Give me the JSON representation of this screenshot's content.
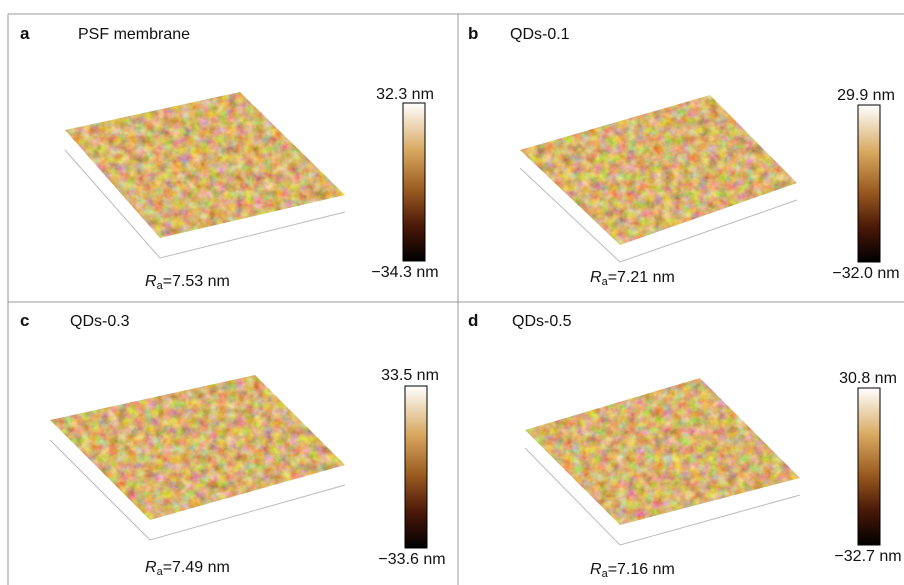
{
  "panels": [
    {
      "letter": "a",
      "title": "PSF membrane",
      "scale_max": "32.3 nm",
      "scale_min": "−34.3 nm",
      "ra": {
        "symbol": "R",
        "subscript": "a",
        "value": "=7.53 nm"
      }
    },
    {
      "letter": "b",
      "title": "QDs-0.1",
      "scale_max": "29.9 nm",
      "scale_min": "−32.0 nm",
      "ra": {
        "symbol": "R",
        "subscript": "a",
        "value": "=7.21 nm"
      }
    },
    {
      "letter": "c",
      "title": "QDs-0.3",
      "scale_max": "33.5 nm",
      "scale_min": "−33.6 nm",
      "ra": {
        "symbol": "R",
        "subscript": "a",
        "value": "=7.49 nm"
      }
    },
    {
      "letter": "d",
      "title": "QDs-0.5",
      "scale_max": "30.8 nm",
      "scale_min": "−32.7 nm",
      "ra": {
        "symbol": "R",
        "subscript": "a",
        "value": "=7.16 nm"
      }
    }
  ]
}
